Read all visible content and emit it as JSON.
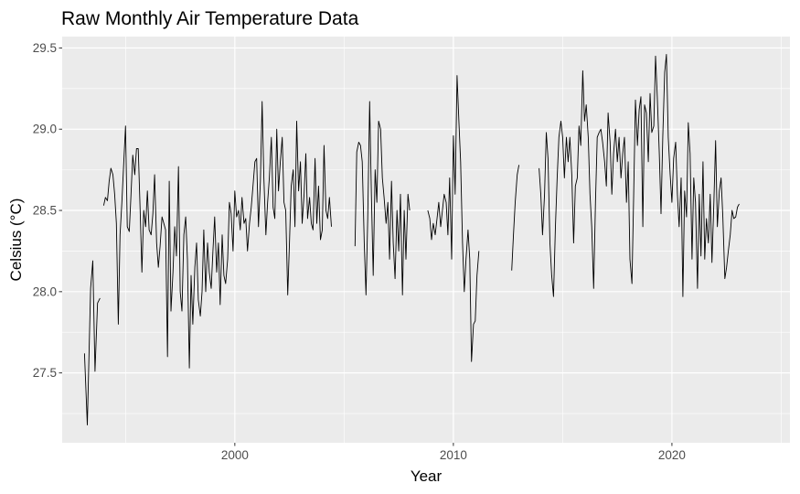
{
  "chart_data": {
    "type": "line",
    "title": "Raw Monthly Air Temperature Data",
    "xlabel": "Year",
    "ylabel": "Celsius (°C)",
    "xlim": [
      1992.1,
      2025.4
    ],
    "ylim": [
      27.07,
      29.57
    ],
    "x_ticks": [
      2000,
      2010,
      2020
    ],
    "x_tick_labels": [
      "2000",
      "2010",
      "2020"
    ],
    "y_ticks": [
      27.5,
      28.0,
      28.5,
      29.0,
      29.5
    ],
    "y_tick_labels": [
      "27.5",
      "28.0",
      "28.5",
      "29.0",
      "29.5"
    ],
    "grid": true,
    "legend": "none",
    "colors": {
      "panel": "#ebebeb",
      "grid": "#ffffff",
      "line": "#000000",
      "tick": "#333333",
      "tick_label": "#4d4d4d"
    },
    "segments": [
      {
        "x": [
          1993.12,
          1993.25,
          1993.4,
          1993.5,
          1993.6,
          1993.72,
          1993.83
        ],
        "y": [
          27.62,
          27.18,
          28.02,
          28.19,
          27.51,
          27.93,
          27.96
        ]
      },
      {
        "x": [
          1994.0,
          1994.08,
          1994.17,
          1994.25,
          1994.33,
          1994.42,
          1994.5,
          1994.58,
          1994.67,
          1994.75,
          1994.83,
          1994.92,
          1995.0,
          1995.08,
          1995.17,
          1995.25,
          1995.33,
          1995.42,
          1995.5,
          1995.58,
          1995.67,
          1995.75,
          1995.83,
          1995.92,
          1996.0,
          1996.08,
          1996.17,
          1996.25,
          1996.33,
          1996.42,
          1996.5,
          1996.58,
          1996.67,
          1996.75,
          1996.83,
          1996.92,
          1997.0,
          1997.08,
          1997.17,
          1997.25,
          1997.33,
          1997.42,
          1997.5,
          1997.58,
          1997.67,
          1997.75,
          1997.83,
          1997.92,
          1998.0,
          1998.08,
          1998.17,
          1998.25,
          1998.33,
          1998.42,
          1998.5,
          1998.58,
          1998.67,
          1998.75,
          1998.83,
          1998.92,
          1999.0,
          1999.08,
          1999.17,
          1999.25,
          1999.33,
          1999.42,
          1999.5,
          1999.58,
          1999.67,
          1999.75,
          1999.83,
          1999.92,
          2000.0,
          2000.08,
          2000.17,
          2000.25,
          2000.33,
          2000.42,
          2000.5,
          2000.58,
          2000.67,
          2000.75,
          2000.83,
          2000.92,
          2001.0,
          2001.08,
          2001.17,
          2001.25,
          2001.33,
          2001.42,
          2001.5,
          2001.58,
          2001.67,
          2001.75,
          2001.83,
          2001.92,
          2002.0,
          2002.08,
          2002.17,
          2002.25,
          2002.33,
          2002.42,
          2002.5,
          2002.58,
          2002.67,
          2002.75,
          2002.83,
          2002.92,
          2003.0,
          2003.08,
          2003.17,
          2003.25,
          2003.33,
          2003.42,
          2003.5,
          2003.58,
          2003.67,
          2003.75,
          2003.83,
          2003.92,
          2004.0,
          2004.08,
          2004.17,
          2004.25,
          2004.33,
          2004.42
        ],
        "y": [
          28.53,
          28.58,
          28.56,
          28.68,
          28.76,
          28.72,
          28.6,
          28.42,
          27.8,
          28.35,
          28.55,
          28.8,
          29.02,
          28.4,
          28.37,
          28.6,
          28.84,
          28.72,
          28.88,
          28.88,
          28.5,
          28.12,
          28.5,
          28.4,
          28.62,
          28.38,
          28.35,
          28.48,
          28.72,
          28.3,
          28.15,
          28.28,
          28.46,
          28.42,
          28.38,
          27.6,
          28.68,
          27.88,
          28.12,
          28.4,
          28.22,
          28.77,
          28.0,
          27.88,
          28.35,
          28.46,
          28.2,
          27.53,
          28.1,
          27.8,
          28.15,
          28.3,
          27.95,
          27.85,
          28.0,
          28.38,
          28.0,
          28.3,
          28.12,
          28.02,
          28.25,
          28.46,
          28.12,
          28.3,
          27.92,
          28.35,
          28.1,
          28.05,
          28.2,
          28.55,
          28.48,
          28.25,
          28.62,
          28.46,
          28.5,
          28.38,
          28.58,
          28.42,
          28.45,
          28.25,
          28.42,
          28.52,
          28.65,
          28.8,
          28.82,
          28.4,
          28.68,
          29.17,
          28.7,
          28.35,
          28.55,
          28.7,
          28.95,
          28.52,
          28.45,
          29.0,
          28.62,
          28.8,
          28.95,
          28.55,
          28.5,
          27.98,
          28.3,
          28.65,
          28.75,
          28.4,
          29.05,
          28.62,
          28.8,
          28.42,
          28.6,
          28.85,
          28.45,
          28.58,
          28.42,
          28.38,
          28.82,
          28.42,
          28.65,
          28.32,
          28.38,
          28.9,
          28.5,
          28.45,
          28.58,
          28.4
        ]
      },
      {
        "x": [
          2005.5,
          2005.58,
          2005.67,
          2005.75,
          2005.83,
          2005.92,
          2006.0,
          2006.08,
          2006.17,
          2006.25,
          2006.33,
          2006.42,
          2006.5,
          2006.58,
          2006.67,
          2006.75,
          2006.83,
          2006.92,
          2007.0,
          2007.08,
          2007.17,
          2007.25,
          2007.33,
          2007.42,
          2007.5,
          2007.58,
          2007.67,
          2007.75,
          2007.83,
          2007.92,
          2008.0
        ],
        "y": [
          28.28,
          28.86,
          28.92,
          28.9,
          28.8,
          28.3,
          27.98,
          28.45,
          29.17,
          28.6,
          28.1,
          28.75,
          28.55,
          29.05,
          29.0,
          28.7,
          28.58,
          28.42,
          28.55,
          28.2,
          28.68,
          28.3,
          28.08,
          28.5,
          28.25,
          28.6,
          27.98,
          28.5,
          28.2,
          28.6,
          28.5
        ]
      },
      {
        "x": [
          2008.83,
          2008.92,
          2009.0,
          2009.08,
          2009.17,
          2009.25,
          2009.33,
          2009.42,
          2009.5,
          2009.58,
          2009.67,
          2009.75,
          2009.83,
          2009.92,
          2010.0,
          2010.08,
          2010.17,
          2010.25,
          2010.33,
          2010.42,
          2010.5,
          2010.58,
          2010.67,
          2010.75,
          2010.83,
          2010.92,
          2011.0,
          2011.08,
          2011.17
        ],
        "y": [
          28.5,
          28.45,
          28.32,
          28.42,
          28.35,
          28.45,
          28.55,
          28.4,
          28.5,
          28.6,
          28.55,
          28.35,
          28.7,
          28.2,
          28.96,
          28.6,
          29.33,
          29.05,
          28.8,
          28.3,
          28.0,
          28.2,
          28.38,
          28.2,
          27.57,
          27.8,
          27.82,
          28.1,
          28.25
        ]
      },
      {
        "x": [
          2012.67,
          2012.75,
          2012.83,
          2012.92,
          2013.0
        ],
        "y": [
          28.13,
          28.35,
          28.55,
          28.72,
          28.78
        ]
      },
      {
        "x": [
          2013.92,
          2014.0,
          2014.08,
          2014.17,
          2014.25,
          2014.33,
          2014.42,
          2014.5,
          2014.58,
          2014.67,
          2014.75,
          2014.83,
          2014.92,
          2015.0,
          2015.08,
          2015.17,
          2015.25,
          2015.33,
          2015.42,
          2015.5,
          2015.58,
          2015.67,
          2015.75,
          2015.83,
          2015.92,
          2016.0,
          2016.08,
          2016.17,
          2016.25,
          2016.33,
          2016.42,
          2016.5,
          2016.58,
          2016.67,
          2016.75,
          2016.83,
          2016.92,
          2017.0,
          2017.08,
          2017.17,
          2017.25,
          2017.33,
          2017.42,
          2017.5,
          2017.58,
          2017.67,
          2017.75,
          2017.83,
          2017.92,
          2018.0,
          2018.08,
          2018.17,
          2018.25,
          2018.33,
          2018.42,
          2018.5,
          2018.58,
          2018.67,
          2018.75,
          2018.83,
          2018.92,
          2019.0,
          2019.08,
          2019.17,
          2019.25,
          2019.33,
          2019.42,
          2019.5,
          2019.58,
          2019.67,
          2019.75,
          2019.83,
          2019.92,
          2020.0,
          2020.08,
          2020.17,
          2020.25,
          2020.33,
          2020.42,
          2020.5,
          2020.58,
          2020.67,
          2020.75,
          2020.83,
          2020.92,
          2021.0,
          2021.08,
          2021.17,
          2021.25,
          2021.33,
          2021.42,
          2021.5,
          2021.58,
          2021.67,
          2021.75,
          2021.83,
          2021.92,
          2022.0,
          2022.08,
          2022.17,
          2022.25,
          2022.33,
          2022.42,
          2022.5,
          2022.58,
          2022.67,
          2022.75,
          2022.83,
          2022.92,
          2023.0,
          2023.08
        ],
        "y": [
          28.76,
          28.6,
          28.35,
          28.6,
          28.98,
          28.82,
          28.3,
          28.1,
          27.97,
          28.4,
          28.7,
          28.95,
          29.05,
          28.95,
          28.7,
          28.95,
          28.8,
          28.95,
          28.72,
          28.3,
          28.65,
          28.7,
          29.02,
          28.9,
          29.36,
          29.05,
          29.15,
          28.95,
          28.6,
          28.4,
          28.02,
          28.55,
          28.95,
          28.98,
          29.0,
          28.92,
          28.8,
          28.65,
          29.1,
          28.92,
          28.6,
          28.85,
          29.0,
          28.8,
          28.95,
          28.7,
          28.85,
          28.95,
          28.55,
          28.8,
          28.2,
          28.05,
          28.6,
          29.18,
          28.9,
          29.12,
          29.2,
          28.4,
          29.15,
          29.1,
          28.8,
          29.22,
          28.98,
          29.02,
          29.45,
          29.2,
          28.85,
          28.48,
          28.95,
          29.35,
          29.46,
          28.95,
          28.72,
          28.55,
          28.82,
          28.92,
          28.6,
          28.4,
          28.7,
          27.97,
          28.62,
          28.46,
          29.04,
          28.85,
          28.2,
          28.7,
          28.55,
          28.02,
          28.6,
          28.22,
          28.8,
          28.2,
          28.45,
          28.3,
          28.6,
          28.18,
          28.55,
          28.93,
          28.4,
          28.62,
          28.7,
          28.46,
          28.08,
          28.15,
          28.25,
          28.35,
          28.5,
          28.45,
          28.46,
          28.52,
          28.54
        ]
      }
    ]
  }
}
